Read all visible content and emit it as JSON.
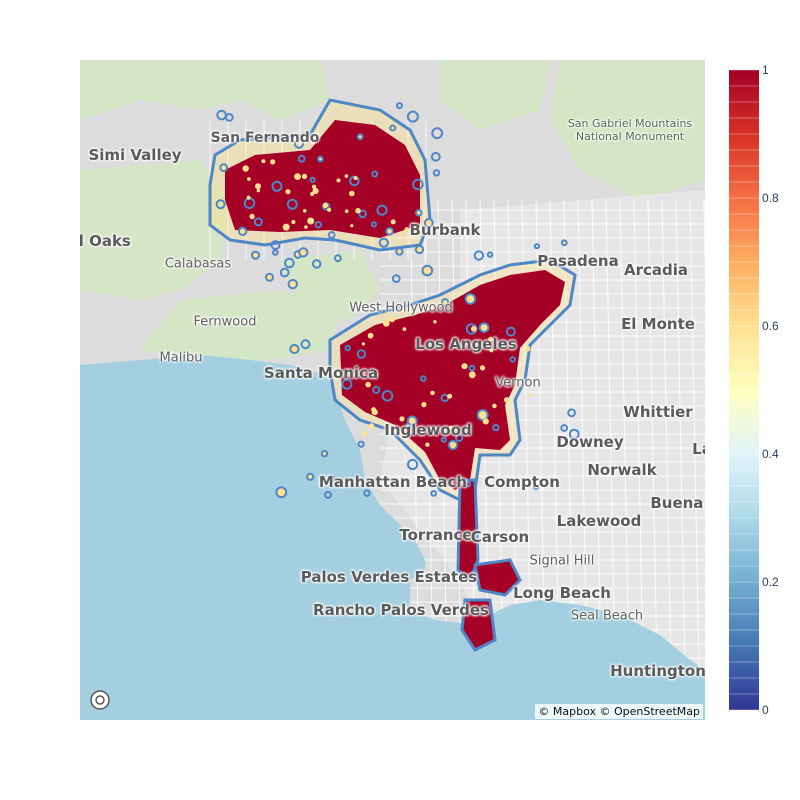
{
  "map": {
    "basemap": "light street map",
    "attribution": "© Mapbox © OpenStreetMap",
    "places": [
      {
        "name": "Simi Valley",
        "cls": "big"
      },
      {
        "name": "d Oaks",
        "cls": "big"
      },
      {
        "name": "Calabasas",
        "cls": "small"
      },
      {
        "name": "Fernwood",
        "cls": "small"
      },
      {
        "name": "Malibu",
        "cls": "small"
      },
      {
        "name": "San Fernando",
        "cls": "mid"
      },
      {
        "name": "Burbank",
        "cls": "big"
      },
      {
        "name": "Pasadena",
        "cls": "big"
      },
      {
        "name": "Arcadia",
        "cls": "big"
      },
      {
        "name": "El Monte",
        "cls": "big"
      },
      {
        "name": "West Hollywood",
        "cls": "small"
      },
      {
        "name": "Los Angeles",
        "cls": "big"
      },
      {
        "name": "Santa Monica",
        "cls": "big"
      },
      {
        "name": "Vernon",
        "cls": "small"
      },
      {
        "name": "Whittier",
        "cls": "big"
      },
      {
        "name": "Inglewood",
        "cls": "big"
      },
      {
        "name": "Downey",
        "cls": "big"
      },
      {
        "name": "La",
        "cls": "big"
      },
      {
        "name": "Norwalk",
        "cls": "big"
      },
      {
        "name": "Manhattan Beach",
        "cls": "big"
      },
      {
        "name": "Compton",
        "cls": "big"
      },
      {
        "name": "Buena P",
        "cls": "big"
      },
      {
        "name": "Lakewood",
        "cls": "big"
      },
      {
        "name": "Torrance",
        "cls": "big"
      },
      {
        "name": "Carson",
        "cls": "big"
      },
      {
        "name": "Signal Hill",
        "cls": "small"
      },
      {
        "name": "Palos Verdes Estates",
        "cls": "big"
      },
      {
        "name": "Long Beach",
        "cls": "big"
      },
      {
        "name": "Rancho Palos Verdes",
        "cls": "big"
      },
      {
        "name": "Seal Beach",
        "cls": "small"
      },
      {
        "name": "Huntington",
        "cls": "big"
      },
      {
        "name": "San Gabriel Mountains National Monument",
        "cls": "park"
      }
    ]
  },
  "colorbar": {
    "colorscale": "RdYlBu reversed",
    "min": 0,
    "max": 1,
    "ticks": [
      "1",
      "0.8",
      "0.6",
      "0.4",
      "0.2",
      "0"
    ],
    "tick_values": [
      1,
      0.8,
      0.6,
      0.4,
      0.2,
      0
    ],
    "colors": [
      "#313695",
      "#4575b4",
      "#74add1",
      "#abd9e9",
      "#e0f3f8",
      "#ffffbf",
      "#fee090",
      "#fdae61",
      "#f46d43",
      "#d73027",
      "#a50026"
    ]
  }
}
